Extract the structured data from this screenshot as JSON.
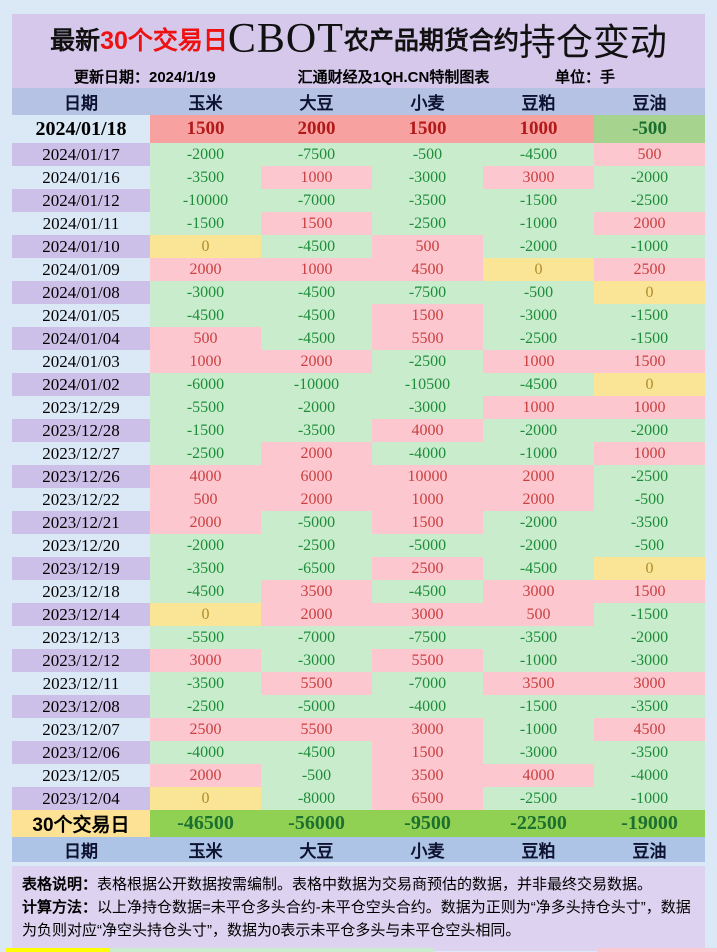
{
  "title": {
    "prefix": "最新",
    "highlight": "30个交易日",
    "brand": "CBOT",
    "middle": "农产品期货合约",
    "suffix": "持仓变动"
  },
  "meta": {
    "update": "更新日期：2024/1/19",
    "source": "汇通财经及1QH.CN特制图表",
    "unit": "单位：手"
  },
  "notes": [
    {
      "label": "表格说明：",
      "text": "表格根据公开数据按需编制。表格中数据为交易商预估的数据，并非最终交易数据。"
    },
    {
      "label": "计算方法：",
      "text": "以上净持仓数据=未平仓多头合约-未平仓空头合约。数据为正则为“净多头持仓头寸”，数据为负则对应“净空头持仓头寸”，数据为0表示未平仓多头与未平仓空头相同。"
    }
  ],
  "colors": {
    "page_bg": "#dbe9f6",
    "title_bg": "#d5c8ea",
    "header_bg": "#b6c2e4",
    "date_alt_bg": "#cdc0e8",
    "negative_bg": "#c9edcc",
    "negative_text": "#1e8c3a",
    "positive_bg": "#fdc7d0",
    "positive_text": "#c84040",
    "zero_bg": "#fae496",
    "zero_text": "#ad8d2d",
    "latest_positive_bg": "#f8a1a1",
    "latest_positive_text": "#b21a1a",
    "latest_negative_bg": "#a6d48f",
    "summary_bg": "#90d053",
    "summary_text": "#1c7030",
    "summary_label_bg": "#fde296",
    "highlight_red": "#ee1111",
    "notes_bg": "#ddd2ef"
  },
  "chart_data": {
    "type": "table",
    "title": "最新30个交易日CBOT农产品期货合约持仓变动",
    "unit": "手",
    "columns": [
      "日期",
      "玉米",
      "大豆",
      "小麦",
      "豆粕",
      "豆油"
    ],
    "rows": [
      {
        "date": "2024/01/18",
        "values": [
          1500,
          2000,
          1500,
          1000,
          -500
        ]
      },
      {
        "date": "2024/01/17",
        "values": [
          -2000,
          -7500,
          -500,
          -4500,
          500
        ]
      },
      {
        "date": "2024/01/16",
        "values": [
          -3500,
          1000,
          -3000,
          3000,
          -2000
        ]
      },
      {
        "date": "2024/01/12",
        "values": [
          -10000,
          -7000,
          -3500,
          -1500,
          -2500
        ]
      },
      {
        "date": "2024/01/11",
        "values": [
          -1500,
          1500,
          -2500,
          -1000,
          2000
        ]
      },
      {
        "date": "2024/01/10",
        "values": [
          0,
          -4500,
          500,
          -2000,
          -1000
        ]
      },
      {
        "date": "2024/01/09",
        "values": [
          2000,
          1000,
          4500,
          0,
          2500
        ]
      },
      {
        "date": "2024/01/08",
        "values": [
          -3000,
          -4500,
          -7500,
          -500,
          0
        ]
      },
      {
        "date": "2024/01/05",
        "values": [
          -4500,
          -4500,
          1500,
          -3000,
          -1500
        ]
      },
      {
        "date": "2024/01/04",
        "values": [
          500,
          -4500,
          5500,
          -2500,
          -1500
        ]
      },
      {
        "date": "2024/01/03",
        "values": [
          1000,
          2000,
          -2500,
          1000,
          1500
        ]
      },
      {
        "date": "2024/01/02",
        "values": [
          -6000,
          -10000,
          -10500,
          -4500,
          0
        ]
      },
      {
        "date": "2023/12/29",
        "values": [
          -5500,
          -2000,
          -3000,
          1000,
          1000
        ]
      },
      {
        "date": "2023/12/28",
        "values": [
          -1500,
          -3500,
          4000,
          -2000,
          -2000
        ]
      },
      {
        "date": "2023/12/27",
        "values": [
          -2500,
          2000,
          -4000,
          -1000,
          1000
        ]
      },
      {
        "date": "2023/12/26",
        "values": [
          4000,
          6000,
          10000,
          2000,
          -2500
        ]
      },
      {
        "date": "2023/12/22",
        "values": [
          500,
          2000,
          1000,
          2000,
          -500
        ]
      },
      {
        "date": "2023/12/21",
        "values": [
          2000,
          -5000,
          1500,
          -2000,
          -3500
        ]
      },
      {
        "date": "2023/12/20",
        "values": [
          -2000,
          -2500,
          -5000,
          -2000,
          -500
        ]
      },
      {
        "date": "2023/12/19",
        "values": [
          -3500,
          -6500,
          2500,
          -4500,
          0
        ]
      },
      {
        "date": "2023/12/18",
        "values": [
          -4500,
          3500,
          -4500,
          3000,
          1500
        ]
      },
      {
        "date": "2023/12/14",
        "values": [
          0,
          2000,
          3000,
          500,
          -1500
        ]
      },
      {
        "date": "2023/12/13",
        "values": [
          -5500,
          -7000,
          -7500,
          -3500,
          -2000
        ]
      },
      {
        "date": "2023/12/12",
        "values": [
          3000,
          -3000,
          5500,
          -1000,
          -3000
        ]
      },
      {
        "date": "2023/12/11",
        "values": [
          -3500,
          5500,
          -7000,
          3500,
          3000
        ]
      },
      {
        "date": "2023/12/08",
        "values": [
          -2500,
          -5000,
          -4000,
          -1500,
          -3500
        ]
      },
      {
        "date": "2023/12/07",
        "values": [
          2500,
          5500,
          3000,
          -1000,
          4500
        ]
      },
      {
        "date": "2023/12/06",
        "values": [
          -4000,
          -4500,
          1500,
          -3000,
          -3500
        ]
      },
      {
        "date": "2023/12/05",
        "values": [
          2000,
          -500,
          3500,
          4000,
          -4000
        ]
      },
      {
        "date": "2023/12/04",
        "values": [
          0,
          -8000,
          6500,
          -2500,
          -1000
        ]
      }
    ],
    "summary": {
      "label": "30个交易日",
      "values": [
        -46500,
        -56000,
        -9500,
        -22500,
        -19000
      ]
    }
  }
}
